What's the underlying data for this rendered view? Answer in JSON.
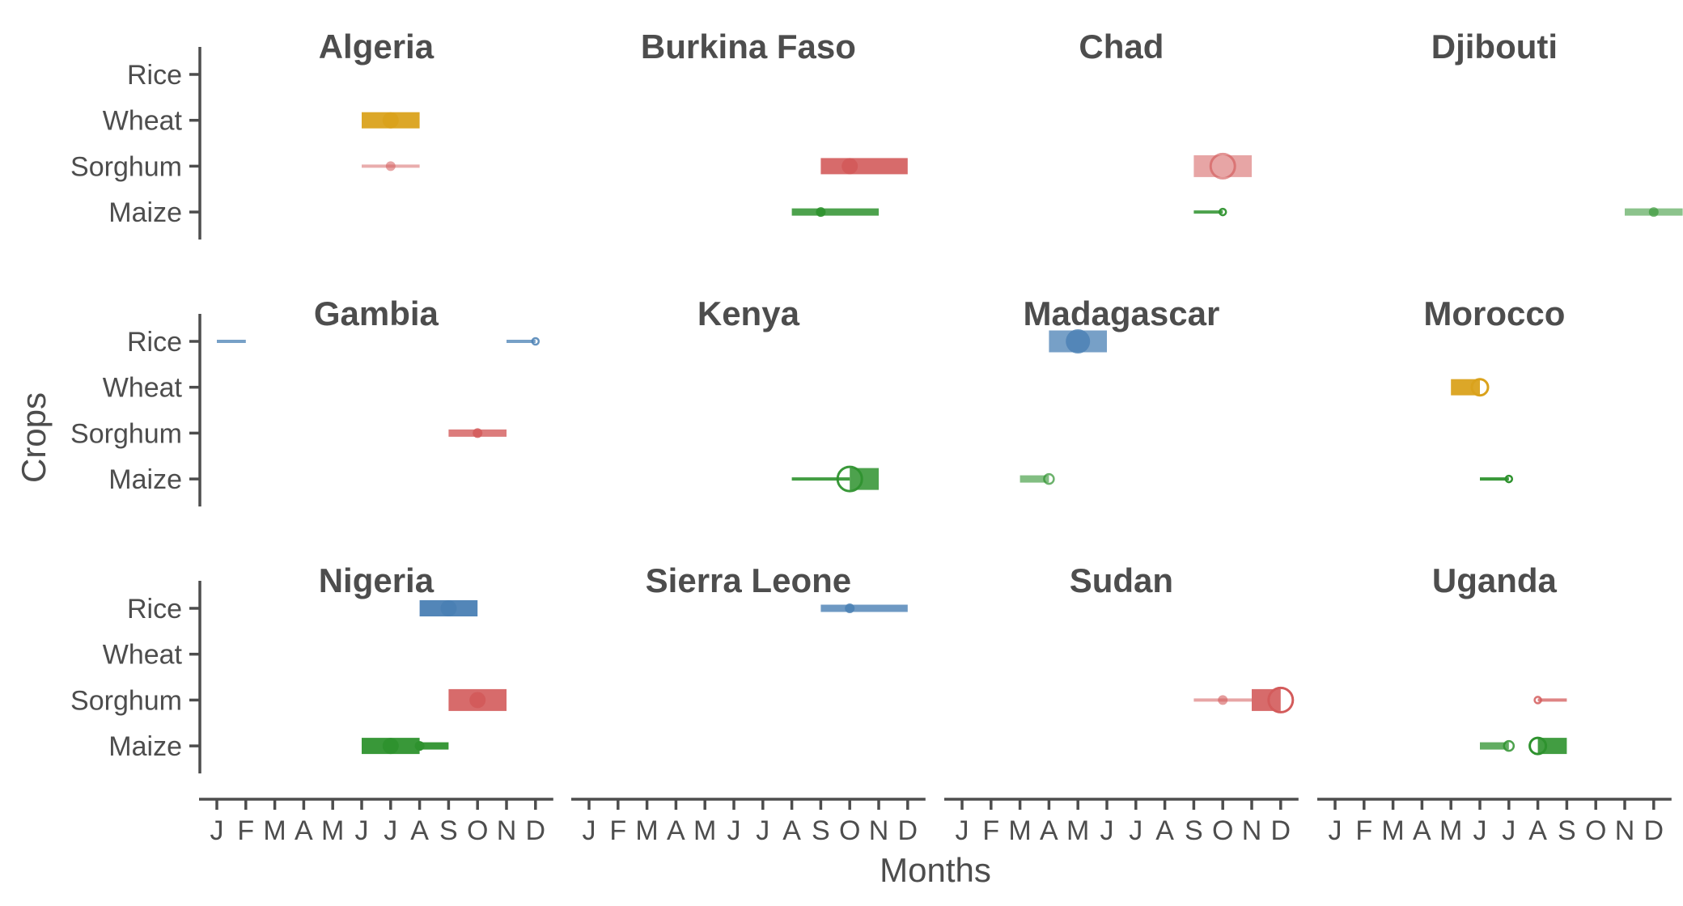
{
  "chart_data": {
    "type": "faceted-range",
    "xlabel": "Months",
    "ylabel": "Crops",
    "x_ticks": [
      "J",
      "F",
      "M",
      "A",
      "M",
      "J",
      "J",
      "A",
      "S",
      "O",
      "N",
      "D"
    ],
    "y_categories": [
      "Rice",
      "Wheat",
      "Sorghum",
      "Maize"
    ],
    "colors": {
      "Rice": "#4a80b4",
      "Wheat": "#daa21c",
      "Sorghum": "#d35b5b",
      "Maize": "#2e922e"
    },
    "facets": [
      {
        "country": "Algeria",
        "ranges": [
          {
            "crop": "Wheat",
            "start": 6,
            "end": 8,
            "peak": 7,
            "width": "thick",
            "point_size": "medium",
            "filled": true,
            "opacity": 0.95
          },
          {
            "crop": "Sorghum",
            "start": 6,
            "end": 8,
            "peak": 7,
            "width": "thin",
            "point_size": "small",
            "filled": true,
            "opacity": 0.5
          }
        ]
      },
      {
        "country": "Burkina Faso",
        "ranges": [
          {
            "crop": "Sorghum",
            "start": 9,
            "end": 12,
            "peak": 10,
            "width": "thick",
            "point_size": "medium",
            "filled": true,
            "opacity": 0.9
          },
          {
            "crop": "Maize",
            "start": 8,
            "end": 11,
            "peak": 9,
            "width": "medium",
            "point_size": "small",
            "filled": true,
            "opacity": 0.85
          }
        ]
      },
      {
        "country": "Chad",
        "ranges": [
          {
            "crop": "Sorghum",
            "start": 9,
            "end": 11,
            "peak": 10,
            "width": "xthick",
            "point_size": "large",
            "filled": false,
            "opacity": 0.55
          },
          {
            "crop": "Maize",
            "start": 9,
            "end": 10,
            "peak": 10,
            "width": "thin",
            "point_size": "tiny",
            "filled": false,
            "opacity": 0.85
          }
        ]
      },
      {
        "country": "Djibouti",
        "ranges": [
          {
            "crop": "Maize",
            "start": 11,
            "end": 13,
            "peak": 12,
            "width": "medium",
            "point_size": "small",
            "filled": true,
            "opacity": 0.55
          }
        ]
      },
      {
        "country": "Gambia",
        "ranges": [
          {
            "crop": "Rice",
            "start": 1,
            "end": 2,
            "peak": null,
            "width": "thin",
            "point_size": "none",
            "filled": true,
            "opacity": 0.75
          },
          {
            "crop": "Rice",
            "start": 11,
            "end": 12,
            "peak": 12,
            "width": "thin",
            "point_size": "tiny",
            "filled": false,
            "opacity": 0.75
          },
          {
            "crop": "Sorghum",
            "start": 9,
            "end": 11,
            "peak": 10,
            "width": "medium",
            "point_size": "small",
            "filled": true,
            "opacity": 0.8
          }
        ]
      },
      {
        "country": "Kenya",
        "ranges": [
          {
            "crop": "Maize",
            "start": 8,
            "end": 10,
            "peak": 10,
            "width": "thin",
            "point_size": "none",
            "filled": true,
            "opacity": 0.9
          },
          {
            "crop": "Maize",
            "start": 10,
            "end": 11,
            "peak": 10,
            "width": "xthick",
            "point_size": "large",
            "filled": false,
            "opacity": 0.85
          }
        ]
      },
      {
        "country": "Madagascar",
        "ranges": [
          {
            "crop": "Rice",
            "start": 4,
            "end": 6,
            "peak": 5,
            "width": "xthick",
            "point_size": "large",
            "filled": true,
            "opacity": 0.75
          },
          {
            "crop": "Maize",
            "start": 3,
            "end": 4,
            "peak": 4,
            "width": "medium",
            "point_size": "small",
            "filled": false,
            "opacity": 0.6
          }
        ]
      },
      {
        "country": "Morocco",
        "ranges": [
          {
            "crop": "Wheat",
            "start": 5,
            "end": 6,
            "peak": 6,
            "width": "thick",
            "point_size": "medium",
            "filled": false,
            "opacity": 0.95
          },
          {
            "crop": "Maize",
            "start": 6,
            "end": 7,
            "peak": 7,
            "width": "thin",
            "point_size": "tiny",
            "filled": false,
            "opacity": 0.95
          }
        ]
      },
      {
        "country": "Nigeria",
        "ranges": [
          {
            "crop": "Rice",
            "start": 8,
            "end": 10,
            "peak": 9,
            "width": "thick",
            "point_size": "medium",
            "filled": true,
            "opacity": 0.95
          },
          {
            "crop": "Sorghum",
            "start": 9,
            "end": 11,
            "peak": 10,
            "width": "xthick",
            "point_size": "medium",
            "filled": true,
            "opacity": 0.9
          },
          {
            "crop": "Maize",
            "start": 6,
            "end": 8,
            "peak": 7,
            "width": "thick",
            "point_size": "medium",
            "filled": true,
            "opacity": 0.95
          },
          {
            "crop": "Maize",
            "start": 8,
            "end": 9,
            "peak": 8,
            "width": "medium",
            "point_size": "small",
            "filled": true,
            "opacity": 0.95
          }
        ]
      },
      {
        "country": "Sierra Leone",
        "ranges": [
          {
            "crop": "Rice",
            "start": 9,
            "end": 12,
            "peak": 10,
            "width": "medium",
            "point_size": "small",
            "filled": true,
            "opacity": 0.8
          }
        ]
      },
      {
        "country": "Sudan",
        "ranges": [
          {
            "crop": "Sorghum",
            "start": 9,
            "end": 11,
            "peak": 10,
            "width": "thin",
            "point_size": "small",
            "filled": true,
            "opacity": 0.55
          },
          {
            "crop": "Sorghum",
            "start": 11,
            "end": 12,
            "peak": 12,
            "width": "xthick",
            "point_size": "large",
            "filled": false,
            "opacity": 0.9
          }
        ]
      },
      {
        "country": "Uganda",
        "ranges": [
          {
            "crop": "Sorghum",
            "start": 8,
            "end": 9,
            "peak": 8,
            "width": "thin",
            "point_size": "tiny",
            "filled": false,
            "opacity": 0.75
          },
          {
            "crop": "Maize",
            "start": 6,
            "end": 7,
            "peak": 7,
            "width": "medium",
            "point_size": "small",
            "filled": false,
            "opacity": 0.75
          },
          {
            "crop": "Maize",
            "start": 8,
            "end": 9,
            "peak": 8,
            "width": "thick",
            "point_size": "medium",
            "filled": false,
            "opacity": 0.9
          }
        ]
      }
    ]
  }
}
